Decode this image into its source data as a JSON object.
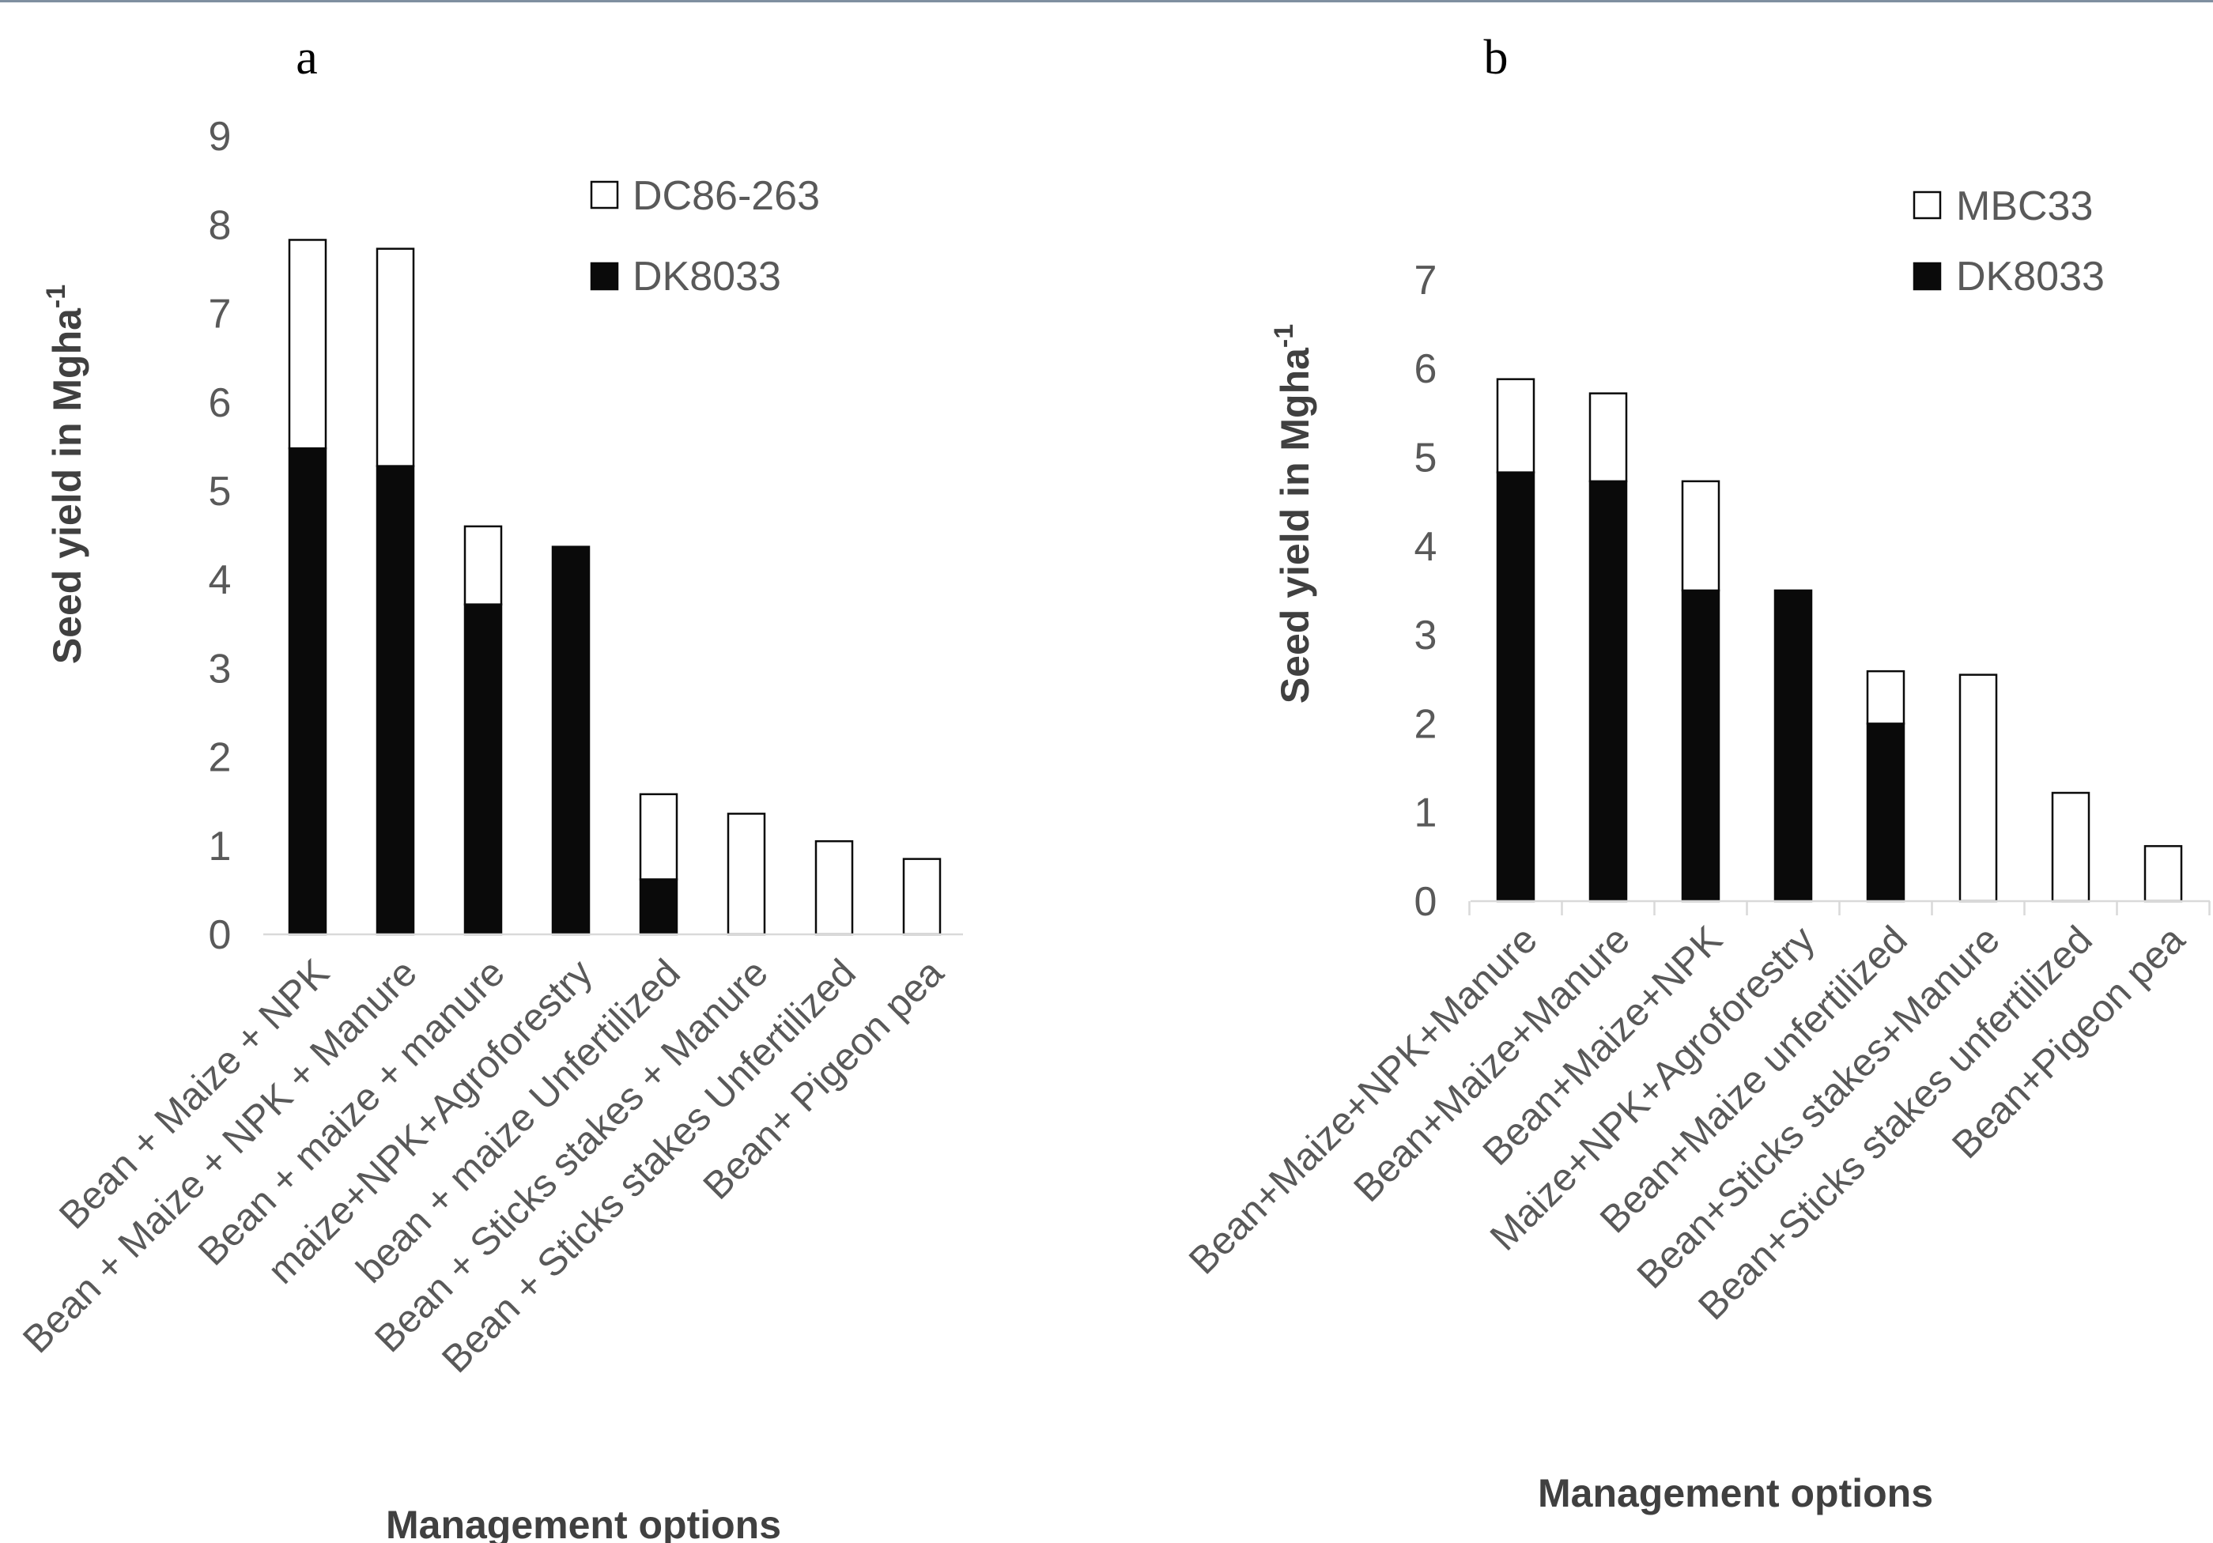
{
  "chart_data": [
    {
      "type": "bar",
      "stacked": true,
      "panel_label": "a",
      "xlabel": "Management options",
      "ylabel": "Seed yield in Mgha",
      "ylabel_superscript": "-1",
      "ylim": [
        0,
        9
      ],
      "yticks": [
        0,
        1,
        2,
        3,
        4,
        5,
        6,
        7,
        8,
        9
      ],
      "legend_position": "top-right",
      "categories": [
        "Bean + Maize + NPK",
        "Bean + Maize + NPK + Manure",
        "Bean + maize + manure",
        "maize+NPK+Agroforestry",
        "bean + maize Unfertilized",
        "Bean + Sticks stakes + Manure",
        "Bean + Sticks stakes Unfertilized",
        "Bean+ Pigeon pea"
      ],
      "series": [
        {
          "name": "DK8033",
          "color": "#0a0a0a",
          "values": [
            5.48,
            5.28,
            3.72,
            4.37,
            0.62,
            0,
            0,
            0
          ]
        },
        {
          "name": "DC86-263",
          "color": "#ffffff",
          "values": [
            2.35,
            2.45,
            0.88,
            0,
            0.96,
            1.36,
            1.05,
            0.85
          ]
        }
      ],
      "legend": [
        "DC86-263",
        "DK8033"
      ]
    },
    {
      "type": "bar",
      "stacked": true,
      "panel_label": "b",
      "xlabel": "Management options",
      "ylabel": "Seed yield in Mgha",
      "ylabel_superscript": "-1",
      "ylim": [
        0,
        7
      ],
      "yticks": [
        0,
        1,
        2,
        3,
        4,
        5,
        6,
        7
      ],
      "legend_position": "top-right",
      "categories": [
        "Bean+Maize+NPK+Manure",
        "Bean+Maize+Manure",
        "Bean+Maize+NPK",
        "Maize+NPK+Agroforestry",
        "Bean+Maize unfertilized",
        "Bean+Sticks stakes+Manure",
        "Bean+Sticks stakes unfertilized",
        "Bean+Pigeon pea"
      ],
      "series": [
        {
          "name": "DK8033",
          "color": "#0a0a0a",
          "values": [
            4.83,
            4.73,
            3.5,
            3.5,
            2.0,
            0,
            0,
            0
          ]
        },
        {
          "name": "MBC33",
          "color": "#ffffff",
          "values": [
            1.05,
            0.99,
            1.23,
            0,
            0.59,
            2.55,
            1.22,
            0.62
          ]
        }
      ],
      "legend": [
        "MBC33",
        "DK8033"
      ]
    }
  ]
}
